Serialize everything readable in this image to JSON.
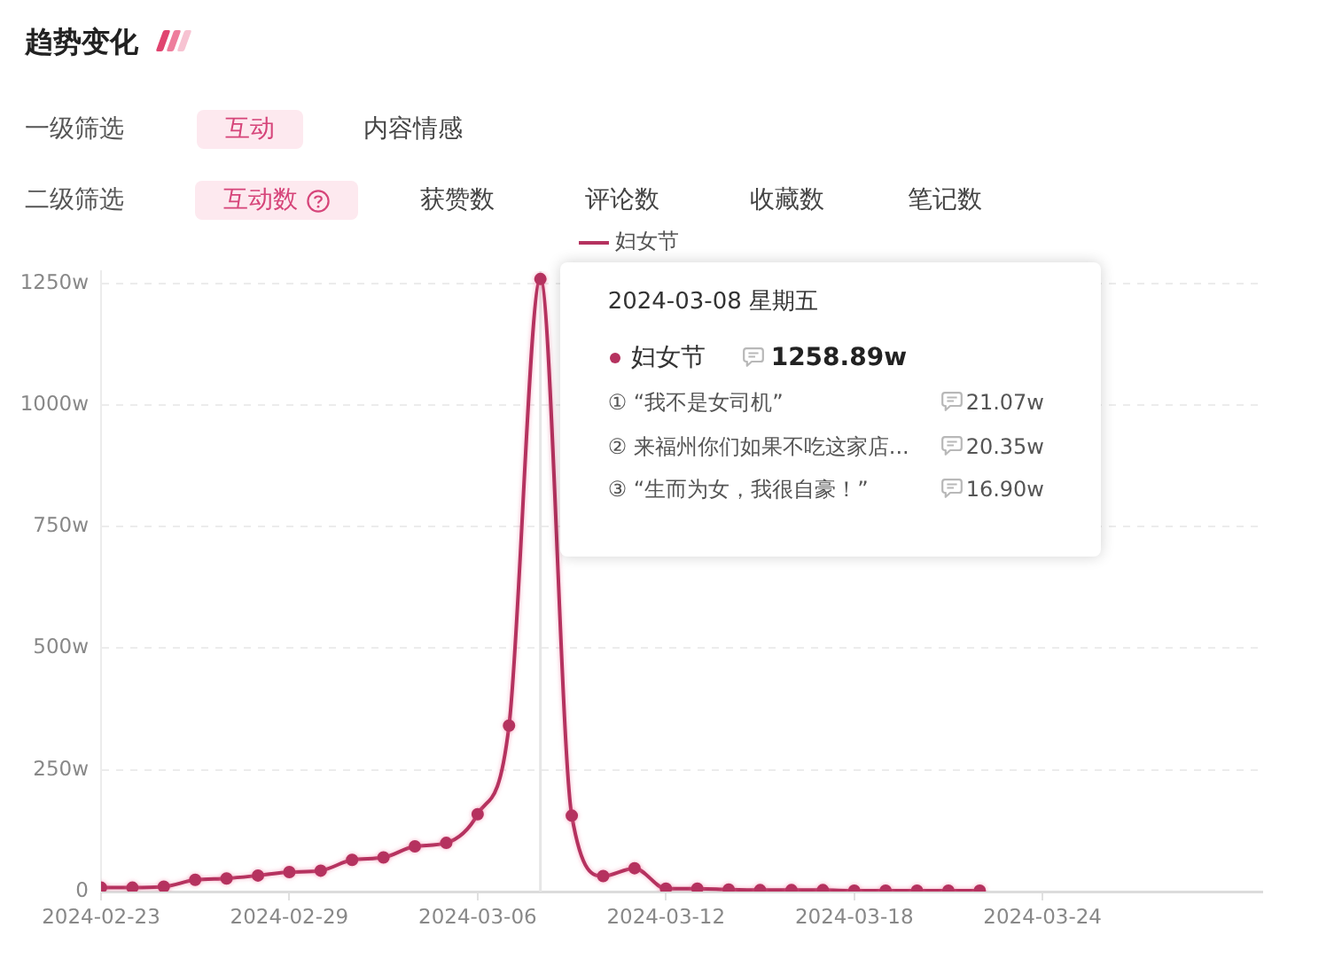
{
  "chart_data": {
    "type": "line",
    "title": "趋势变化",
    "x": [
      "2024-02-23",
      "2024-02-24",
      "2024-02-25",
      "2024-02-26",
      "2024-02-27",
      "2024-02-28",
      "2024-02-29",
      "2024-03-01",
      "2024-03-02",
      "2024-03-03",
      "2024-03-04",
      "2024-03-05",
      "2024-03-06",
      "2024-03-07",
      "2024-03-08",
      "2024-03-09",
      "2024-03-10",
      "2024-03-11",
      "2024-03-12",
      "2024-03-13",
      "2024-03-14",
      "2024-03-15",
      "2024-03-16",
      "2024-03-17",
      "2024-03-18",
      "2024-03-19",
      "2024-03-20",
      "2024-03-21",
      "2024-03-22"
    ],
    "series": [
      {
        "name": "妇女节",
        "color": "#b5325f",
        "values": [
          8,
          8,
          10,
          24,
          27,
          33,
          40,
          43,
          65,
          70,
          93,
          100,
          159,
          341,
          1258.89,
          156,
          32,
          48,
          6,
          6,
          4,
          3,
          3,
          3,
          2,
          2,
          2,
          2,
          2
        ]
      }
    ],
    "xlim": [
      "2024-02-23",
      "2024-03-31"
    ],
    "xticks": [
      "2024-02-23",
      "2024-02-29",
      "2024-03-06",
      "2024-03-12",
      "2024-03-18",
      "2024-03-24"
    ],
    "ylim": [
      0,
      1275
    ],
    "yticks": [
      0,
      {
        "value": 250,
        "label": "250w"
      },
      {
        "value": 500,
        "label": "500w"
      },
      {
        "value": 750,
        "label": "750w"
      },
      {
        "value": 1000,
        "label": "1000w"
      },
      {
        "value": 1250,
        "label": "1250w"
      }
    ],
    "grid": "y",
    "legend": "top",
    "marker": "circle",
    "line_style": "solid",
    "ref_lines": [
      {
        "axis": "x",
        "value": "2024-03-08",
        "color": "#e6e6e6"
      }
    ],
    "annotations": [
      "一级筛选",
      "互动",
      "内容情感",
      "二级筛选",
      "互动数",
      "获赞数",
      "评论数",
      "收藏数",
      "笔记数",
      {
        "text": "2024-03-08  星期五",
        "x": "2024-03-08",
        "y": 1258.89
      },
      "1258.89w",
      "① “我不是女司机”",
      "21.07w",
      "② 来福州你们如果不吃这家店...",
      "20.35w",
      "③ “生而为女，我很自豪！”",
      "16.90w"
    ]
  }
}
